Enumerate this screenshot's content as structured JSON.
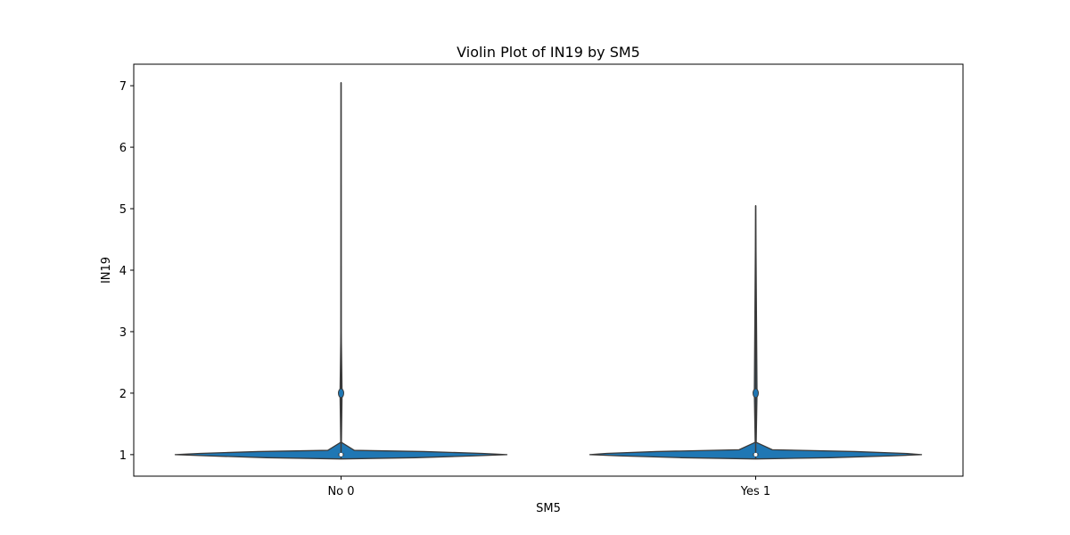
{
  "chart_data": {
    "type": "violin",
    "title": "Violin Plot of IN19 by SM5",
    "xlabel": "SM5",
    "ylabel": "IN19",
    "categories": [
      "No 0",
      "Yes 1"
    ],
    "ylim": [
      0.65,
      7.35
    ],
    "yticks": [
      1,
      2,
      3,
      4,
      5,
      6,
      7
    ],
    "grid": false,
    "fill_color": "#1f77b4",
    "edge_color": "#3a3a3a",
    "violins": [
      {
        "category": "No 0",
        "min": 0.93,
        "max": 7.05,
        "median": 1,
        "q1": 1,
        "q3": 1,
        "whisker_low": 1,
        "whisker_high": 1,
        "outliers": [
          2
        ],
        "density": [
          [
            0.93,
            0.0
          ],
          [
            0.95,
            0.45
          ],
          [
            0.98,
            0.8
          ],
          [
            1.0,
            1.0
          ],
          [
            1.02,
            0.85
          ],
          [
            1.05,
            0.5
          ],
          [
            1.07,
            0.08
          ],
          [
            1.2,
            0.002
          ],
          [
            2.0,
            0.006
          ],
          [
            3.0,
            0.001
          ],
          [
            7.05,
            0.0
          ]
        ]
      },
      {
        "category": "Yes 1",
        "min": 0.93,
        "max": 5.05,
        "median": 1,
        "q1": 1,
        "q3": 1,
        "whisker_low": 1,
        "whisker_high": 1,
        "outliers": [
          2
        ],
        "density": [
          [
            0.93,
            0.0
          ],
          [
            0.95,
            0.45
          ],
          [
            0.98,
            0.82
          ],
          [
            1.0,
            1.0
          ],
          [
            1.02,
            0.9
          ],
          [
            1.05,
            0.6
          ],
          [
            1.08,
            0.1
          ],
          [
            1.2,
            0.003
          ],
          [
            2.0,
            0.008
          ],
          [
            5.05,
            0.0
          ]
        ]
      }
    ]
  }
}
